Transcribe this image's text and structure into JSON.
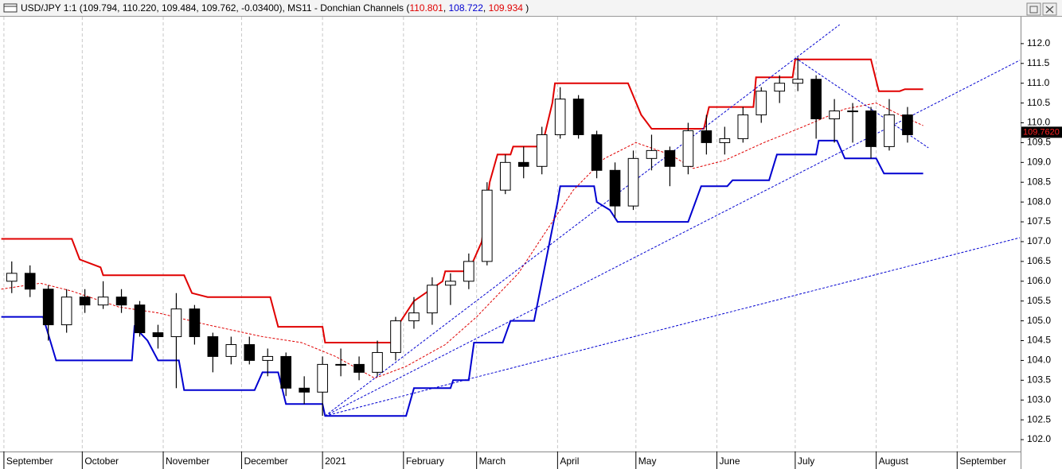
{
  "chart_data": {
    "type": "candlestick",
    "title": "USD/JPY 1:1 (109.794, 110.220, 109.484, 109.762, -0.03400), MS11 - Donchian Channels (",
    "indicator_values": [
      110.801,
      108.722,
      109.934
    ],
    "indicator_colors": [
      "#e00000",
      "#0000d0",
      "#e00000"
    ],
    "title_separator": ", ",
    "title_end": " )",
    "last_price": {
      "value": 109.762,
      "label": "109.7620"
    },
    "xlim": [
      -1.5,
      389.3
    ],
    "ylim": [
      101.7,
      112.68
    ],
    "xticks": [
      {
        "value": 0,
        "label": "September"
      },
      {
        "value": 30,
        "label": "October"
      },
      {
        "value": 61,
        "label": "November"
      },
      {
        "value": 91,
        "label": "December"
      },
      {
        "value": 122,
        "label": "2021"
      },
      {
        "value": 153,
        "label": "February"
      },
      {
        "value": 181,
        "label": "March"
      },
      {
        "value": 212,
        "label": "April"
      },
      {
        "value": 242,
        "label": "May"
      },
      {
        "value": 273,
        "label": "June"
      },
      {
        "value": 303,
        "label": "July"
      },
      {
        "value": 334,
        "label": "August"
      },
      {
        "value": 365,
        "label": "September"
      }
    ],
    "yticks": [
      {
        "value": 102,
        "label": "102.0"
      },
      {
        "value": 102.5,
        "label": "102.5"
      },
      {
        "value": 103,
        "label": "103.0"
      },
      {
        "value": 103.5,
        "label": "103.5"
      },
      {
        "value": 104,
        "label": "104.0"
      },
      {
        "value": 104.5,
        "label": "104.5"
      },
      {
        "value": 105,
        "label": "105.0"
      },
      {
        "value": 105.5,
        "label": "105.5"
      },
      {
        "value": 106,
        "label": "106.0"
      },
      {
        "value": 106.5,
        "label": "106.5"
      },
      {
        "value": 107,
        "label": "107.0"
      },
      {
        "value": 107.5,
        "label": "107.5"
      },
      {
        "value": 108,
        "label": "108.0"
      },
      {
        "value": 108.5,
        "label": "108.5"
      },
      {
        "value": 109,
        "label": "109.0"
      },
      {
        "value": 109.5,
        "label": "109.5"
      },
      {
        "value": 110,
        "label": "110.0"
      },
      {
        "value": 110.5,
        "label": "110.5"
      },
      {
        "value": 111,
        "label": "111.0"
      },
      {
        "value": 111.5,
        "label": "111.5"
      },
      {
        "value": 112,
        "label": "112.0"
      }
    ],
    "grid": true,
    "series": [
      {
        "up_color": "#ffffff",
        "down_color": "#000000",
        "x": [
          3,
          10,
          17,
          24,
          31,
          38,
          45,
          52,
          59,
          66,
          73,
          80,
          87,
          94,
          101,
          108,
          115,
          122,
          129,
          136,
          143,
          150,
          157,
          164,
          171,
          178,
          185,
          192,
          199,
          206,
          213,
          220,
          227,
          234,
          241,
          248,
          255,
          262,
          269,
          276,
          283,
          290,
          297,
          304,
          311,
          318,
          325,
          332,
          339,
          346
        ],
        "open": [
          106.0,
          106.2,
          105.8,
          104.9,
          105.6,
          105.4,
          105.6,
          105.4,
          104.7,
          104.6,
          105.3,
          104.6,
          104.1,
          104.4,
          104.0,
          104.1,
          103.3,
          103.2,
          103.9,
          103.9,
          103.7,
          104.2,
          105.0,
          105.2,
          105.9,
          106.0,
          106.5,
          108.3,
          109.0,
          108.9,
          109.7,
          110.6,
          109.7,
          108.8,
          107.9,
          109.1,
          109.3,
          108.9,
          109.8,
          109.5,
          109.6,
          110.2,
          110.8,
          111.0,
          111.1,
          110.1,
          110.3,
          110.3,
          109.4,
          110.2
        ],
        "high": [
          106.5,
          106.4,
          105.9,
          105.8,
          105.8,
          106.0,
          105.8,
          105.5,
          104.9,
          105.7,
          105.4,
          104.7,
          104.6,
          104.6,
          104.3,
          104.2,
          103.6,
          104.1,
          104.3,
          104.1,
          104.5,
          105.1,
          105.6,
          106.1,
          106.2,
          106.7,
          108.5,
          109.2,
          109.4,
          109.9,
          110.9,
          110.7,
          109.8,
          109.0,
          109.3,
          109.7,
          109.4,
          110.0,
          110.2,
          109.9,
          110.4,
          110.9,
          111.2,
          111.65,
          111.2,
          110.6,
          110.5,
          110.4,
          110.6,
          110.4
        ],
        "low": [
          105.7,
          105.6,
          104.5,
          104.7,
          105.2,
          105.3,
          105.2,
          104.6,
          104.3,
          103.3,
          104.4,
          103.7,
          103.9,
          103.9,
          103.6,
          103.1,
          102.9,
          102.6,
          103.6,
          103.5,
          103.6,
          104.0,
          104.8,
          104.9,
          105.4,
          105.8,
          106.4,
          108.2,
          108.6,
          108.7,
          109.6,
          109.6,
          108.6,
          107.6,
          107.8,
          108.8,
          108.4,
          108.7,
          109.2,
          109.2,
          109.5,
          110.0,
          110.5,
          110.8,
          109.6,
          109.5,
          109.5,
          109.1,
          109.3,
          109.5
        ],
        "close": [
          106.2,
          105.8,
          104.9,
          105.6,
          105.4,
          105.6,
          105.4,
          104.7,
          104.6,
          105.3,
          104.6,
          104.1,
          104.4,
          104.0,
          104.1,
          103.3,
          103.2,
          103.9,
          103.9,
          103.7,
          104.2,
          105.0,
          105.2,
          105.9,
          106.0,
          106.5,
          108.3,
          109.0,
          108.9,
          109.7,
          110.6,
          109.7,
          108.8,
          107.9,
          109.1,
          109.3,
          108.9,
          109.8,
          109.5,
          109.6,
          110.2,
          110.8,
          111.0,
          111.1,
          110.1,
          110.3,
          110.3,
          109.4,
          110.2,
          109.7
        ]
      }
    ],
    "lines": [
      {
        "color": "#e00000",
        "width": 2,
        "dashed": false,
        "x": [
          -1,
          26,
          29,
          37,
          38,
          69,
          72,
          78,
          102,
          105,
          122,
          123,
          149,
          151,
          157,
          168,
          169,
          178,
          183,
          186,
          189,
          194,
          195,
          206,
          210,
          211,
          239,
          244,
          248,
          268,
          270,
          287,
          288,
          302,
          303,
          332,
          335,
          343,
          345,
          352
        ],
        "values": [
          107.07,
          107.07,
          106.55,
          106.35,
          106.15,
          106.15,
          105.7,
          105.6,
          105.6,
          104.85,
          104.85,
          104.45,
          104.45,
          104.9,
          105.5,
          106.0,
          106.25,
          106.25,
          107.0,
          108.5,
          109.2,
          109.2,
          109.4,
          109.4,
          110.5,
          111.0,
          111.0,
          110.2,
          109.85,
          109.85,
          110.4,
          110.4,
          111.15,
          111.15,
          111.6,
          111.6,
          110.8,
          110.8,
          110.85,
          110.85
        ]
      },
      {
        "color": "#0000d0",
        "width": 2,
        "dashed": false,
        "x": [
          -1,
          15,
          20,
          49,
          50,
          55,
          59,
          67,
          69,
          96,
          99,
          105,
          108,
          122,
          123,
          154,
          157,
          171,
          172,
          178,
          180,
          191,
          194,
          203,
          206,
          209,
          212,
          213,
          226,
          227,
          232,
          235,
          262,
          267,
          277,
          279,
          293,
          296,
          311,
          312,
          319,
          322,
          334,
          337,
          352
        ],
        "values": [
          105.1,
          105.1,
          104.0,
          104.0,
          104.85,
          104.5,
          104.0,
          104.0,
          103.25,
          103.25,
          103.7,
          103.7,
          102.9,
          102.9,
          102.6,
          102.6,
          103.3,
          103.3,
          103.5,
          103.5,
          104.45,
          104.45,
          105.0,
          105.0,
          106.0,
          107.0,
          108.0,
          108.4,
          108.4,
          108.0,
          107.8,
          107.5,
          107.5,
          108.4,
          108.4,
          108.55,
          108.55,
          109.2,
          109.2,
          109.55,
          109.55,
          109.1,
          109.1,
          108.72,
          108.72
        ]
      },
      {
        "color": "#e00000",
        "width": 1,
        "dashed": true,
        "x": [
          -1,
          14,
          26,
          44,
          59,
          78,
          99,
          114,
          127,
          142,
          154,
          169,
          181,
          197,
          209,
          218,
          230,
          242,
          255,
          264,
          276,
          291,
          306,
          322,
          334,
          343,
          352
        ],
        "values": [
          105.8,
          105.95,
          105.75,
          105.35,
          105.2,
          104.9,
          104.6,
          104.45,
          104.1,
          103.55,
          103.85,
          104.4,
          105.1,
          106.2,
          107.4,
          108.3,
          109.1,
          109.5,
          109.2,
          108.85,
          109.05,
          109.5,
          109.9,
          110.35,
          110.5,
          110.2,
          109.93
        ]
      },
      {
        "color": "#0000d0",
        "width": 1,
        "dashed": true,
        "x": [
          123,
          320
        ],
        "values": [
          102.6,
          112.48
        ]
      },
      {
        "color": "#0000d0",
        "width": 1,
        "dashed": true,
        "x": [
          123,
          389
        ],
        "values": [
          102.6,
          111.58
        ]
      },
      {
        "color": "#0000d0",
        "width": 1,
        "dashed": true,
        "x": [
          123,
          389
        ],
        "values": [
          102.6,
          107.1
        ]
      },
      {
        "color": "#0000d0",
        "width": 1,
        "dashed": true,
        "x": [
          303,
          354
        ],
        "values": [
          111.64,
          109.37
        ]
      }
    ]
  }
}
